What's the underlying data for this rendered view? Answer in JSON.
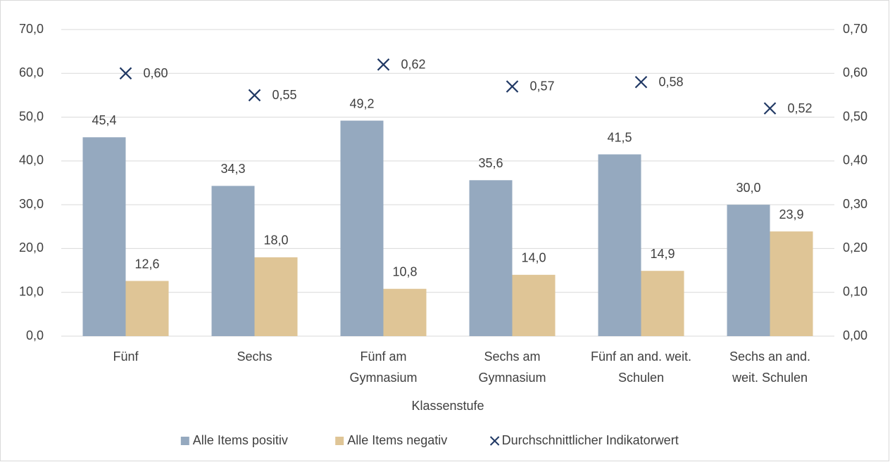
{
  "chart_data": {
    "type": "bar",
    "x_label": "Klassenstufe",
    "categories": [
      "Fünf",
      "Sechs",
      "Fünf am\nGymnasium",
      "Sechs am\nGymnasium",
      "Fünf an and. weit.\nSchulen",
      "Sechs an and.\nweit. Schulen"
    ],
    "series": [
      {
        "name": "Alle Items positiv",
        "color": "#95a9bf",
        "values": [
          45.4,
          34.3,
          49.2,
          35.6,
          41.5,
          30.0
        ],
        "value_labels": [
          "45,4",
          "34,3",
          "49,2",
          "35,6",
          "41,5",
          "30,0"
        ]
      },
      {
        "name": "Alle Items negativ",
        "color": "#dfc596",
        "values": [
          12.6,
          18.0,
          10.8,
          14.0,
          14.9,
          23.9
        ],
        "value_labels": [
          "12,6",
          "18,0",
          "10,8",
          "14,0",
          "14,9",
          "23,9"
        ]
      },
      {
        "name": "Durchschnittlicher Indikatorwert",
        "type": "scatter",
        "axis": "y2",
        "color": "#203864",
        "values": [
          0.6,
          0.55,
          0.62,
          0.57,
          0.58,
          0.52
        ],
        "value_labels": [
          "0,60",
          "0,55",
          "0,62",
          "0,57",
          "0,58",
          "0,52"
        ]
      }
    ],
    "ylim": [
      0,
      70
    ],
    "yticks": [
      {
        "value": 0,
        "label": "0,0"
      },
      {
        "value": 10,
        "label": "10,0"
      },
      {
        "value": 20,
        "label": "20,0"
      },
      {
        "value": 30,
        "label": "30,0"
      },
      {
        "value": 40,
        "label": "40,0"
      },
      {
        "value": 50,
        "label": "50,0"
      },
      {
        "value": 60,
        "label": "60,0"
      },
      {
        "value": 70,
        "label": "70,0"
      }
    ],
    "y2lim": [
      0,
      0.7
    ],
    "y2ticks": [
      {
        "value": 0,
        "label": "0,00"
      },
      {
        "value": 0.1,
        "label": "0,10"
      },
      {
        "value": 0.2,
        "label": "0,20"
      },
      {
        "value": 0.3,
        "label": "0,30"
      },
      {
        "value": 0.4,
        "label": "0,40"
      },
      {
        "value": 0.5,
        "label": "0,50"
      },
      {
        "value": 0.6,
        "label": "0,60"
      },
      {
        "value": 0.7,
        "label": "0,70"
      }
    ],
    "grid": true,
    "legend": "bottom"
  }
}
